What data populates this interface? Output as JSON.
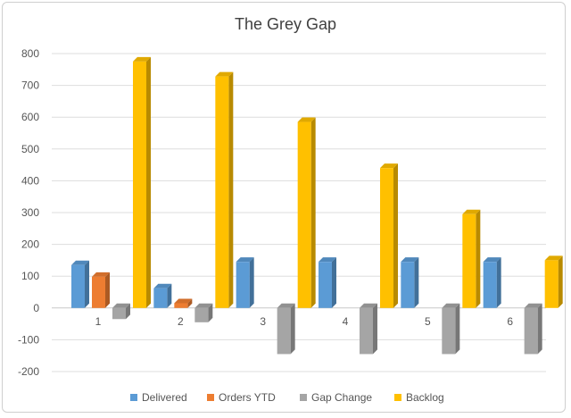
{
  "chart_data": {
    "type": "bar",
    "title": "The Grey Gap",
    "xlabel": "",
    "ylabel": "",
    "categories": [
      "1",
      "2",
      "3",
      "4",
      "5",
      "6"
    ],
    "ylim": [
      -200,
      800
    ],
    "yticks": [
      -200,
      -100,
      0,
      100,
      200,
      300,
      400,
      500,
      600,
      700,
      800
    ],
    "grid": true,
    "legend_position": "bottom",
    "style": "3d-clustered-column",
    "series": [
      {
        "name": "Delivered",
        "color": "#5B9BD5",
        "values": [
          135,
          62,
          145,
          145,
          145,
          145
        ]
      },
      {
        "name": "Orders YTD",
        "color": "#ED7D31",
        "values": [
          98,
          15,
          null,
          null,
          null,
          null
        ]
      },
      {
        "name": "Gap Change",
        "color": "#A5A5A5",
        "values": [
          -35,
          -45,
          -145,
          -145,
          -145,
          -145
        ]
      },
      {
        "name": "Backlog",
        "color": "#FFC000",
        "values": [
          775,
          728,
          585,
          440,
          295,
          150
        ]
      }
    ]
  }
}
